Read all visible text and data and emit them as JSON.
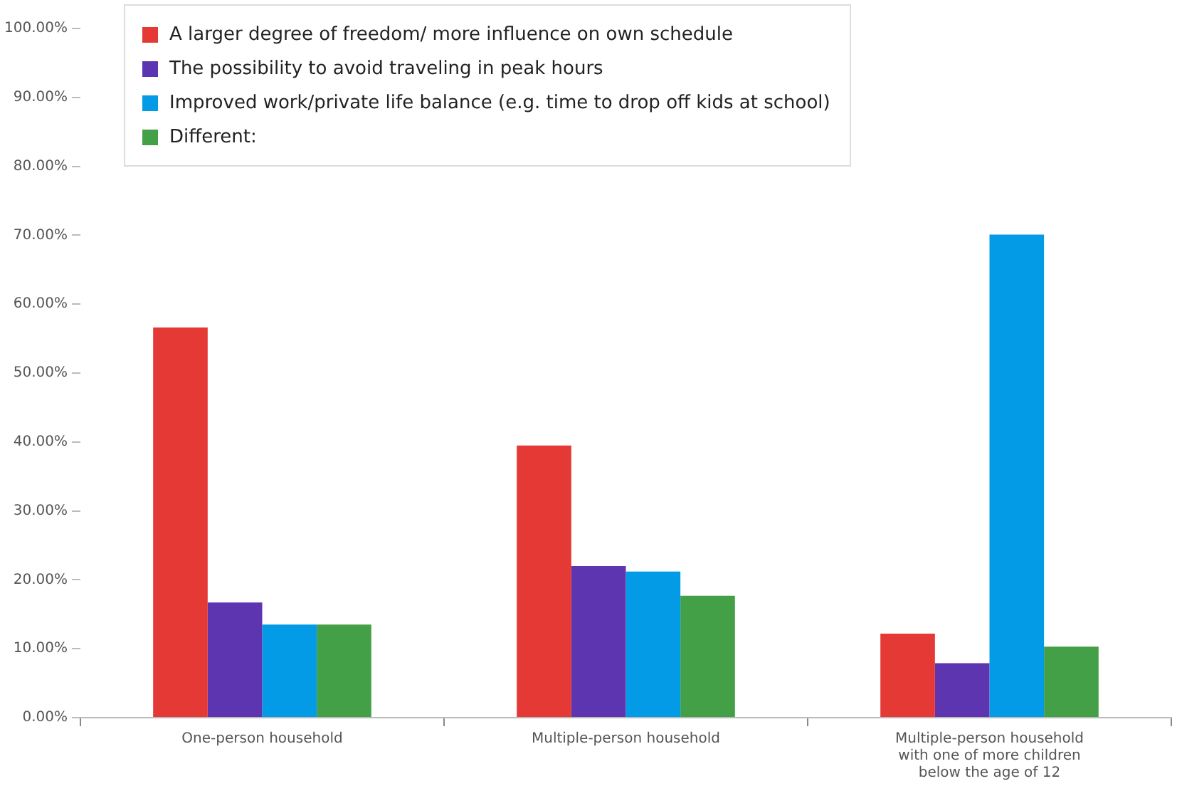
{
  "chart_data": {
    "type": "bar",
    "categories": [
      "One-person household",
      "Multiple-person household",
      "Multiple-person household with one of more children below the age of 12"
    ],
    "series": [
      {
        "name": "A larger degree of freedom/ more influence on own schedule",
        "color": "#e53935",
        "values": [
          56.6,
          39.5,
          12.2
        ]
      },
      {
        "name": "The possibility to avoid traveling in peak hours",
        "color": "#5e35b1",
        "values": [
          16.7,
          22.0,
          7.9
        ]
      },
      {
        "name": "Improved work/private life balance (e.g. time to drop off kids at school)",
        "color": "#039be5",
        "values": [
          13.5,
          21.2,
          70.1
        ]
      },
      {
        "name": "Different:",
        "color": "#43a047",
        "values": [
          13.5,
          17.7,
          10.3
        ]
      }
    ],
    "ylim": [
      0,
      100
    ],
    "yticks": [
      {
        "value": 0,
        "label": "0.00%"
      },
      {
        "value": 10,
        "label": "10.00%"
      },
      {
        "value": 20,
        "label": "20.00%"
      },
      {
        "value": 30,
        "label": "30.00%"
      },
      {
        "value": 40,
        "label": "40.00%"
      },
      {
        "value": 50,
        "label": "50.00%"
      },
      {
        "value": 60,
        "label": "60.00%"
      },
      {
        "value": 70,
        "label": "70.00%"
      },
      {
        "value": 80,
        "label": "80.00%"
      },
      {
        "value": 90,
        "label": "90.00%"
      },
      {
        "value": 100,
        "label": "100.00%"
      }
    ],
    "legend": "top left"
  }
}
